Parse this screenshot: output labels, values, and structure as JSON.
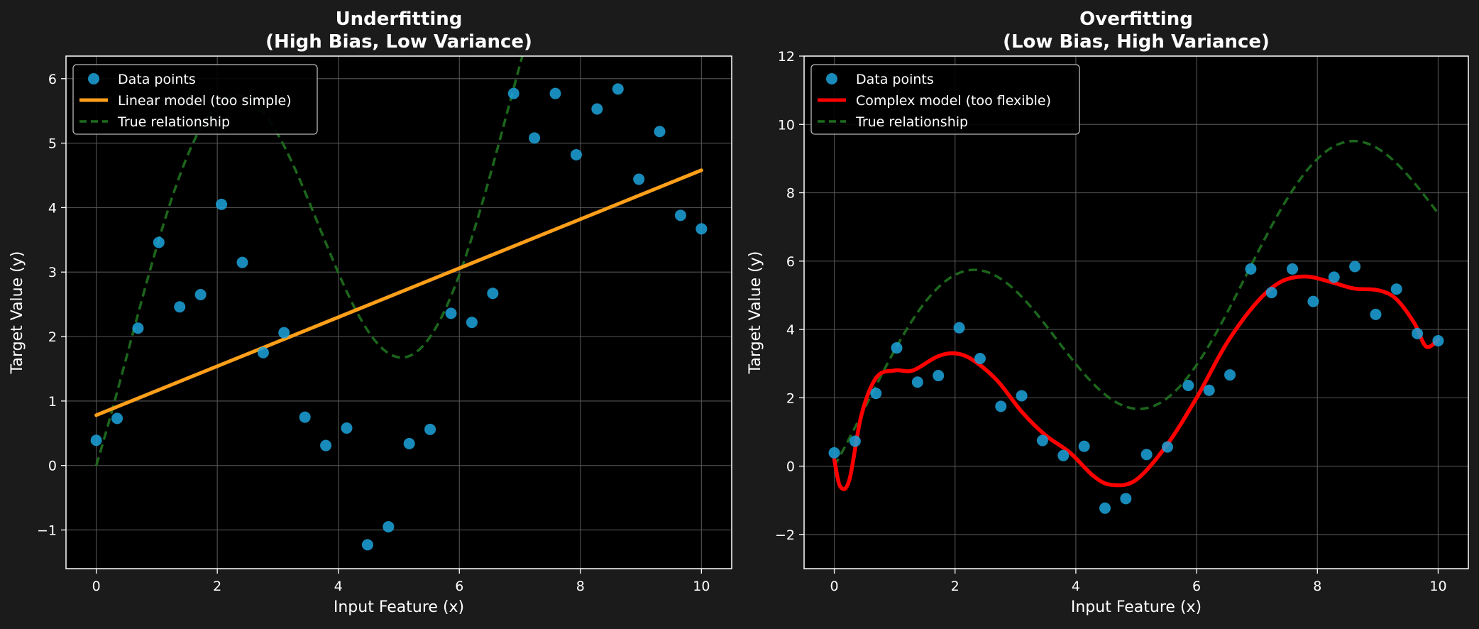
{
  "colors": {
    "page_background": "#1b1b1b",
    "plot_background": "#000000",
    "text": "#ffffff",
    "grid": "#5a5a5a",
    "data_points": "#1ca3dc",
    "linear_model": "#ff9f1a",
    "complex_model": "#ff0000",
    "true_relationship": "#1e6b1e"
  },
  "chart_data": [
    {
      "id": "underfitting",
      "type": "scatter",
      "title": "Underfitting",
      "subtitle": "(High Bias, Low Variance)",
      "xlabel": "Input Feature (x)",
      "ylabel": "Target Value (y)",
      "xlim": [
        -0.5,
        10.5
      ],
      "ylim": [
        -1.6,
        6.35
      ],
      "xticks": [
        0,
        2,
        4,
        6,
        8,
        10
      ],
      "xtick_labels": [
        "0",
        "2",
        "4",
        "6",
        "8",
        "10"
      ],
      "yticks": [
        -1,
        0,
        1,
        2,
        3,
        4,
        5,
        6
      ],
      "ytick_labels": [
        "−1",
        "0",
        "1",
        "2",
        "3",
        "4",
        "5",
        "6"
      ],
      "grid": true,
      "legend_position": "top-left",
      "legend": [
        {
          "label": "Data points",
          "kind": "marker",
          "color_key": "data_points"
        },
        {
          "label": "Linear model (too simple)",
          "kind": "line",
          "color_key": "linear_model"
        },
        {
          "label": "True relationship",
          "kind": "dashed",
          "color_key": "true_relationship"
        }
      ],
      "series": [
        {
          "name": "Data points",
          "kind": "scatter",
          "x": [
            0,
            0.345,
            0.69,
            1.034,
            1.379,
            1.724,
            2.069,
            2.414,
            2.759,
            3.103,
            3.448,
            3.793,
            4.138,
            4.483,
            4.828,
            5.172,
            5.517,
            5.862,
            6.207,
            6.552,
            6.897,
            7.241,
            7.586,
            7.931,
            8.276,
            8.621,
            8.966,
            9.31,
            9.655,
            10
          ],
          "y": [
            0.39,
            0.73,
            2.13,
            3.46,
            2.46,
            2.65,
            4.05,
            3.15,
            1.75,
            2.06,
            0.75,
            0.31,
            0.58,
            -1.23,
            -0.95,
            0.34,
            0.56,
            2.36,
            2.22,
            2.67,
            5.77,
            5.08,
            5.77,
            4.82,
            5.53,
            5.84,
            4.44,
            5.18,
            3.88,
            3.67
          ]
        },
        {
          "name": "Linear model (too simple)",
          "kind": "line",
          "x": [
            0,
            10
          ],
          "y": [
            0.78,
            4.58
          ]
        },
        {
          "name": "True relationship",
          "kind": "function",
          "formula": "0.6x + 2.5 sin(x) - 1.5 cos(x) + 1.5"
        }
      ]
    },
    {
      "id": "overfitting",
      "type": "scatter",
      "title": "Overfitting",
      "subtitle": "(Low Bias, High Variance)",
      "xlabel": "Input Feature (x)",
      "ylabel": "Target Value (y)",
      "xlim": [
        -0.5,
        10.5
      ],
      "ylim": [
        -3,
        12
      ],
      "xticks": [
        0,
        2,
        4,
        6,
        8,
        10
      ],
      "xtick_labels": [
        "0",
        "2",
        "4",
        "6",
        "8",
        "10"
      ],
      "yticks": [
        -2,
        0,
        2,
        4,
        6,
        8,
        10,
        12
      ],
      "ytick_labels": [
        "−2",
        "0",
        "2",
        "4",
        "6",
        "8",
        "10",
        "12"
      ],
      "grid": true,
      "legend_position": "top-left",
      "legend": [
        {
          "label": "Data points",
          "kind": "marker",
          "color_key": "data_points"
        },
        {
          "label": "Complex model (too flexible)",
          "kind": "line",
          "color_key": "complex_model"
        },
        {
          "label": "True relationship",
          "kind": "dashed",
          "color_key": "true_relationship"
        }
      ],
      "series": [
        {
          "name": "Data points",
          "kind": "scatter",
          "x": [
            0,
            0.345,
            0.69,
            1.034,
            1.379,
            1.724,
            2.069,
            2.414,
            2.759,
            3.103,
            3.448,
            3.793,
            4.138,
            4.483,
            4.828,
            5.172,
            5.517,
            5.862,
            6.207,
            6.552,
            6.897,
            7.241,
            7.586,
            7.931,
            8.276,
            8.621,
            8.966,
            9.31,
            9.655,
            10
          ],
          "y": [
            0.39,
            0.73,
            2.13,
            3.46,
            2.46,
            2.65,
            4.05,
            3.15,
            1.75,
            2.06,
            0.75,
            0.31,
            0.58,
            -1.23,
            -0.95,
            0.34,
            0.56,
            2.36,
            2.22,
            2.67,
            5.77,
            5.08,
            5.77,
            4.82,
            5.53,
            5.84,
            4.44,
            5.18,
            3.88,
            3.67
          ]
        },
        {
          "name": "Complex model (too flexible)",
          "kind": "line",
          "x": [
            0,
            0.1,
            0.25,
            0.45,
            0.7,
            1.0,
            1.3,
            1.7,
            2.0,
            2.3,
            2.7,
            3.1,
            3.5,
            3.9,
            4.3,
            4.6,
            5.0,
            5.5,
            6.0,
            6.5,
            7.0,
            7.4,
            7.8,
            8.2,
            8.6,
            9.0,
            9.3,
            9.6,
            9.8,
            10.0
          ],
          "y": [
            0.2,
            -0.6,
            -0.4,
            1.5,
            2.6,
            2.8,
            2.8,
            3.2,
            3.3,
            3.1,
            2.5,
            1.6,
            0.9,
            0.4,
            -0.3,
            -0.55,
            -0.4,
            0.6,
            2.0,
            3.6,
            4.8,
            5.4,
            5.55,
            5.4,
            5.2,
            5.15,
            4.9,
            4.2,
            3.5,
            3.7
          ]
        },
        {
          "name": "True relationship",
          "kind": "function",
          "formula": "0.6x + 2.5 sin(x) - 1.5 cos(x) + 1.5"
        }
      ]
    }
  ]
}
